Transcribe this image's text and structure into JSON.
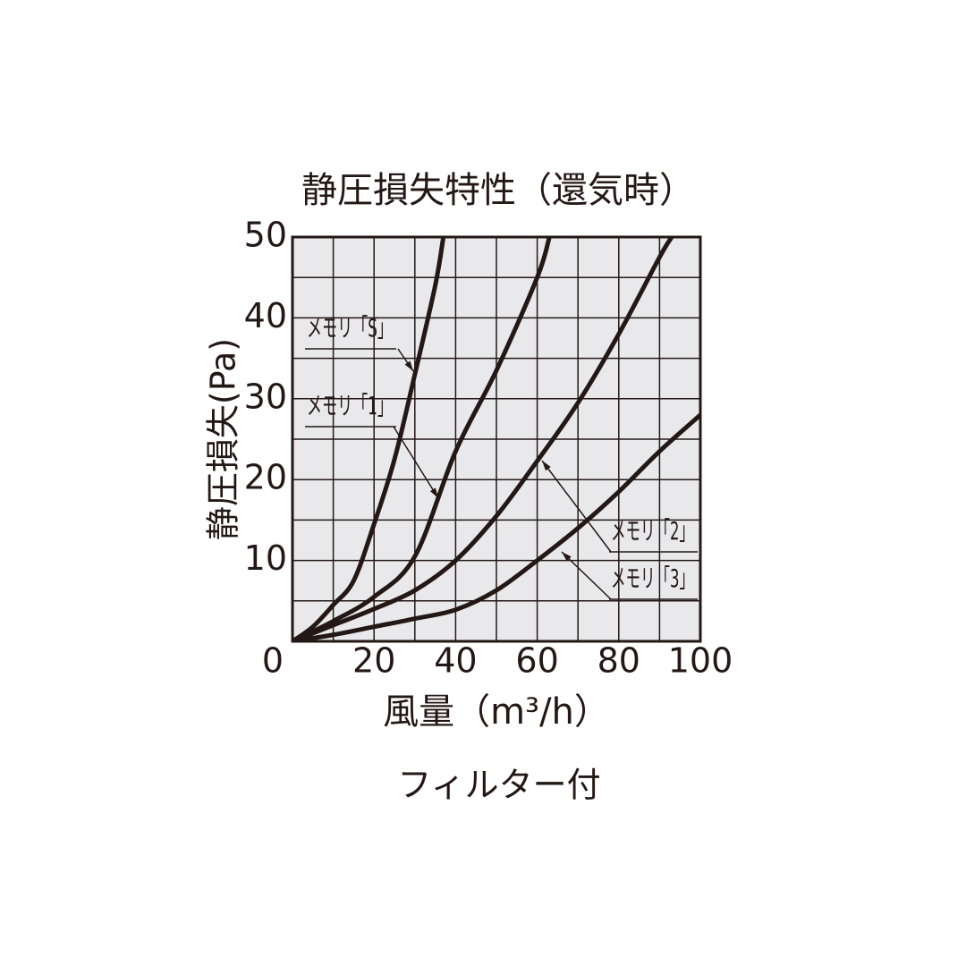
{
  "chart_data": {
    "type": "line",
    "title": "静圧損失特性（還気時）",
    "xlabel": "風量（m³/h）",
    "ylabel": "静圧損失(Pa)",
    "footnote": "フィルター付",
    "xlim": [
      0,
      100
    ],
    "ylim": [
      0,
      50
    ],
    "xticks": [
      0,
      20,
      40,
      60,
      80,
      100
    ],
    "yticks": [
      0,
      10,
      20,
      30,
      40,
      50
    ],
    "xminor_ticks": [
      10,
      30,
      50,
      70,
      90
    ],
    "yminor_ticks": [
      5,
      15,
      25,
      35,
      45
    ],
    "grid": true,
    "series": [
      {
        "name": "メモリ「S」",
        "color": "#231815",
        "x": [
          0,
          5,
          10,
          15,
          20,
          25,
          30,
          35,
          37
        ],
        "values": [
          0,
          1.8,
          4.5,
          7.5,
          14.5,
          22.5,
          33,
          44,
          50
        ]
      },
      {
        "name": "メモリ「1」",
        "color": "#231815",
        "x": [
          0,
          10,
          20,
          30,
          40,
          50,
          60,
          63
        ],
        "values": [
          0,
          2.5,
          5.5,
          10.5,
          23.5,
          33.5,
          45,
          50
        ]
      },
      {
        "name": "メモリ「2」",
        "color": "#231815",
        "x": [
          0,
          10,
          20,
          30,
          40,
          50,
          60,
          70,
          80,
          90,
          93
        ],
        "values": [
          0,
          2,
          4,
          6.3,
          10,
          15.5,
          22.3,
          29.5,
          38,
          47.5,
          50
        ]
      },
      {
        "name": "メモリ「3」",
        "color": "#231815",
        "x": [
          0,
          10,
          20,
          30,
          40,
          50,
          60,
          70,
          80,
          90,
          100
        ],
        "values": [
          0,
          0.8,
          1.8,
          2.8,
          3.9,
          6.3,
          10,
          14,
          18.5,
          23.5,
          28
        ]
      }
    ]
  }
}
